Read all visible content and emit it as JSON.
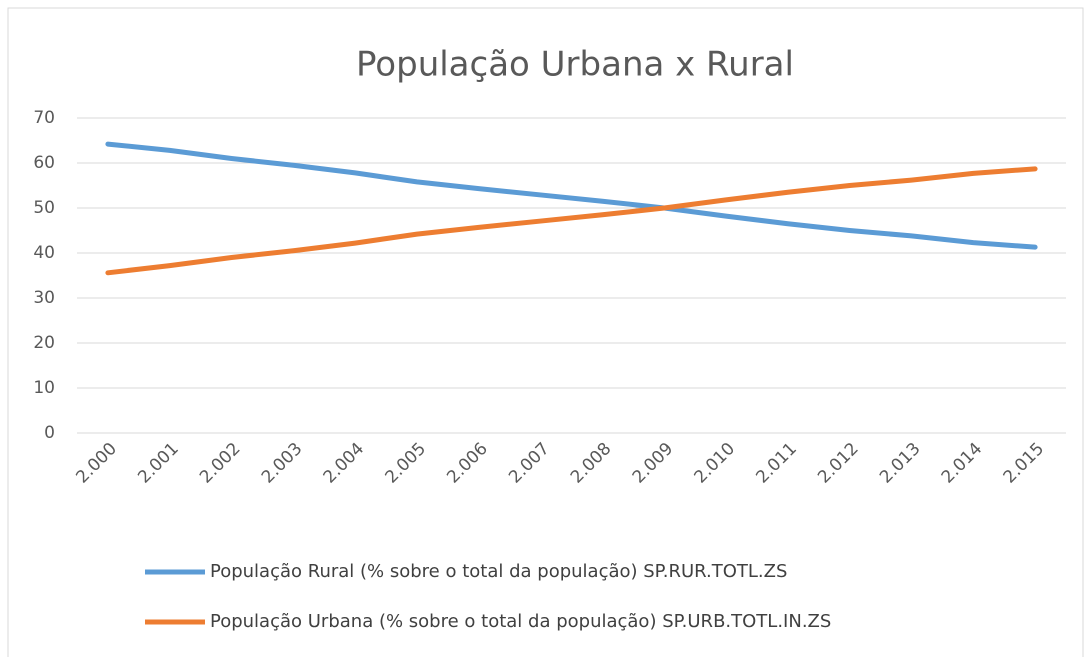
{
  "chart_data": {
    "type": "line",
    "title": "População Urbana x Rural",
    "categories": [
      "2.000",
      "2.001",
      "2.002",
      "2.003",
      "2.004",
      "2.005",
      "2.006",
      "2.007",
      "2.008",
      "2.009",
      "2.010",
      "2.011",
      "2.012",
      "2.013",
      "2.014",
      "2.015"
    ],
    "series": [
      {
        "name": "População Rural (% sobre o total da população) SP.RUR.TOTL.ZS",
        "color": "#5b9bd5",
        "values": [
          64.2,
          62.8,
          61,
          59.5,
          57.8,
          55.8,
          54.3,
          52.9,
          51.5,
          50,
          48.2,
          46.5,
          45,
          43.8,
          42.3,
          41.3
        ]
      },
      {
        "name": "População Urbana (% sobre o total da população) SP.URB.TOTL.IN.ZS",
        "color": "#ed7d31",
        "values": [
          35.6,
          37.2,
          39,
          40.5,
          42.2,
          44.2,
          45.7,
          47.1,
          48.5,
          50,
          51.8,
          53.5,
          55,
          56.2,
          57.7,
          58.7
        ]
      }
    ],
    "ylim": [
      0,
      70
    ],
    "yticks": [
      0,
      10,
      20,
      30,
      40,
      50,
      60,
      70
    ],
    "grid": true
  }
}
